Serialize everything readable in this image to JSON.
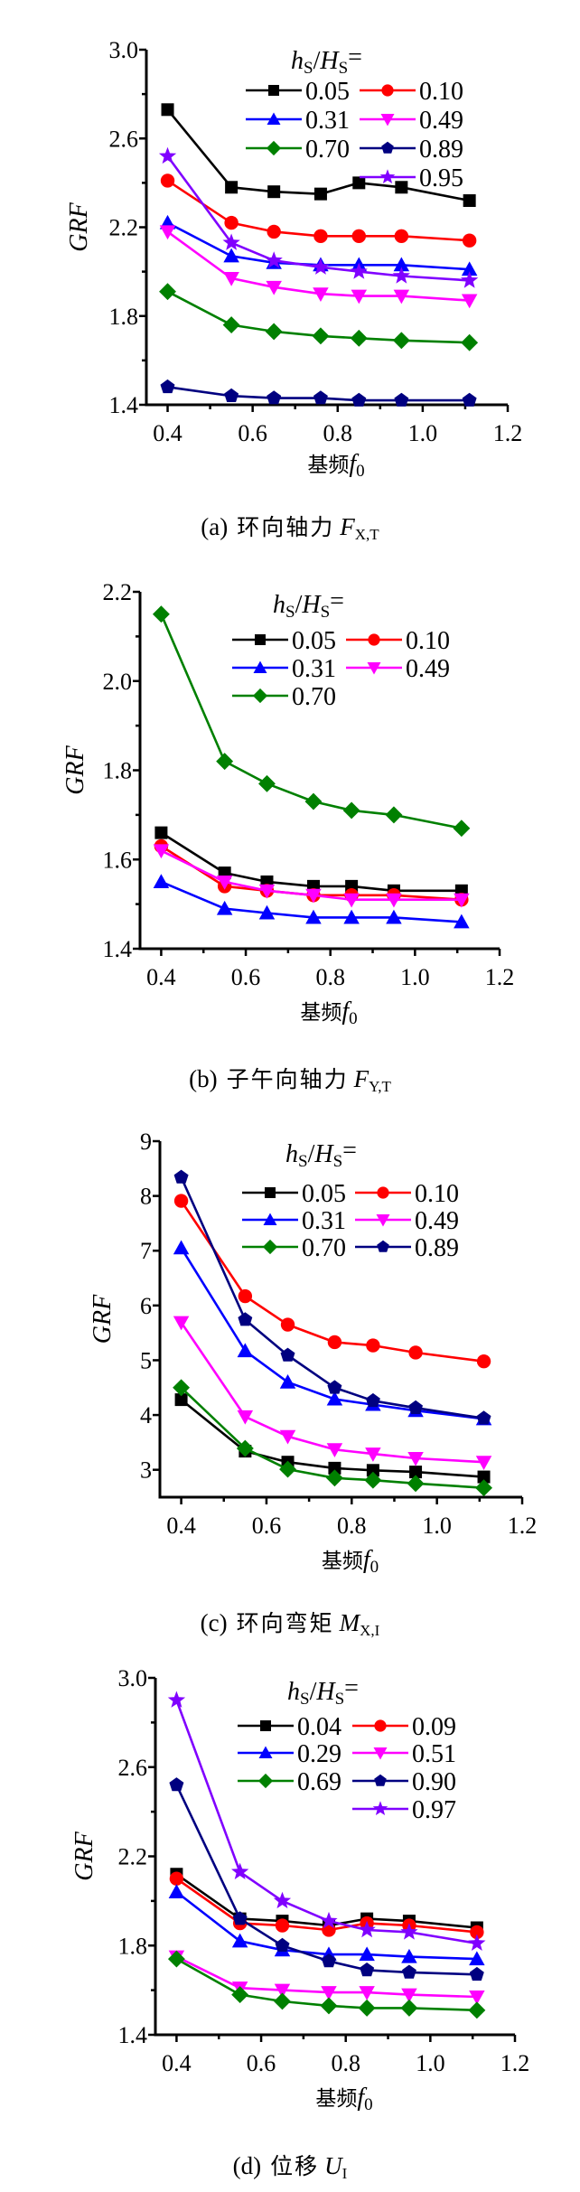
{
  "chart_data": [
    {
      "id": "a",
      "type": "line",
      "caption": {
        "label": "(a)",
        "text": "环向轴力",
        "symbol": "F",
        "subscript": "X,T"
      },
      "xlabel": {
        "text": "基频",
        "symbol": "f",
        "subscript": "0"
      },
      "ylabel": "GRF",
      "legend_title": {
        "h": "h",
        "h_sub": "S",
        "slash": "/",
        "H": "H",
        "H_sub": "S",
        "eq": "="
      },
      "legend_placement": "top-right",
      "xlim": [
        0.35,
        1.2
      ],
      "ylim": [
        1.4,
        3.0
      ],
      "xticks": [
        0.4,
        0.6,
        0.8,
        1.0,
        1.2
      ],
      "xtick_labels": [
        "0.4",
        "0.6",
        "0.8",
        "1.0",
        "1.2"
      ],
      "yticks": [
        1.4,
        1.8,
        2.2,
        2.6,
        3.0
      ],
      "ytick_labels": [
        "1.4",
        "1.8",
        "2.2",
        "2.6",
        "3.0"
      ],
      "yminor": [
        1.6,
        2.0,
        2.4,
        2.8
      ],
      "grid": false,
      "x": [
        0.4,
        0.55,
        0.65,
        0.76,
        0.85,
        0.95,
        1.11
      ],
      "series": [
        {
          "name": "0.05",
          "color": "#000000",
          "marker": "square",
          "values": [
            2.73,
            2.38,
            2.36,
            2.35,
            2.4,
            2.38,
            2.32
          ]
        },
        {
          "name": "0.10",
          "color": "#ff0000",
          "marker": "circle",
          "values": [
            2.41,
            2.22,
            2.18,
            2.16,
            2.16,
            2.16,
            2.14
          ]
        },
        {
          "name": "0.31",
          "color": "#0000ff",
          "marker": "triangle-up",
          "values": [
            2.22,
            2.07,
            2.04,
            2.03,
            2.03,
            2.03,
            2.01
          ]
        },
        {
          "name": "0.49",
          "color": "#ff00ff",
          "marker": "triangle-down",
          "values": [
            2.18,
            1.97,
            1.93,
            1.9,
            1.89,
            1.89,
            1.87
          ]
        },
        {
          "name": "0.70",
          "color": "#008000",
          "marker": "diamond",
          "values": [
            1.91,
            1.76,
            1.73,
            1.71,
            1.7,
            1.69,
            1.68
          ]
        },
        {
          "name": "0.89",
          "color": "#000080",
          "marker": "pentagon",
          "values": [
            1.48,
            1.44,
            1.43,
            1.43,
            1.42,
            1.42,
            1.42
          ]
        },
        {
          "name": "0.95",
          "color": "#8000ff",
          "marker": "star",
          "values": [
            2.52,
            2.13,
            2.05,
            2.02,
            2.0,
            1.98,
            1.96
          ]
        }
      ]
    },
    {
      "id": "b",
      "type": "line",
      "caption": {
        "label": "(b)",
        "text": "子午向轴力",
        "symbol": "F",
        "subscript": "Y,T"
      },
      "xlabel": {
        "text": "基频",
        "symbol": "f",
        "subscript": "0"
      },
      "ylabel": "GRF",
      "legend_title": {
        "h": "h",
        "h_sub": "S",
        "slash": "/",
        "H": "H",
        "H_sub": "S",
        "eq": "="
      },
      "legend_placement": "top-right",
      "xlim": [
        0.35,
        1.2
      ],
      "ylim": [
        1.4,
        2.2
      ],
      "xticks": [
        0.4,
        0.6,
        0.8,
        1.0,
        1.2
      ],
      "xtick_labels": [
        "0.4",
        "0.6",
        "0.8",
        "1.0",
        "1.2"
      ],
      "yticks": [
        1.4,
        1.6,
        1.8,
        2.0,
        2.2
      ],
      "ytick_labels": [
        "1.4",
        "1.6",
        "1.8",
        "2.0",
        "2.2"
      ],
      "yminor": [
        1.5,
        1.7,
        1.9,
        2.1
      ],
      "grid": false,
      "x": [
        0.4,
        0.55,
        0.65,
        0.76,
        0.85,
        0.95,
        1.11
      ],
      "series": [
        {
          "name": "0.05",
          "color": "#000000",
          "marker": "square",
          "values": [
            1.66,
            1.57,
            1.55,
            1.54,
            1.54,
            1.53,
            1.53
          ]
        },
        {
          "name": "0.10",
          "color": "#ff0000",
          "marker": "circle",
          "values": [
            1.63,
            1.54,
            1.53,
            1.52,
            1.52,
            1.52,
            1.51
          ]
        },
        {
          "name": "0.31",
          "color": "#0000ff",
          "marker": "triangle-up",
          "values": [
            1.55,
            1.49,
            1.48,
            1.47,
            1.47,
            1.47,
            1.46
          ]
        },
        {
          "name": "0.49",
          "color": "#ff00ff",
          "marker": "triangle-down",
          "values": [
            1.62,
            1.55,
            1.53,
            1.52,
            1.51,
            1.51,
            1.51
          ]
        },
        {
          "name": "0.70",
          "color": "#008000",
          "marker": "diamond",
          "values": [
            2.15,
            1.82,
            1.77,
            1.73,
            1.71,
            1.7,
            1.67
          ]
        }
      ]
    },
    {
      "id": "c",
      "type": "line",
      "caption": {
        "label": "(c)",
        "text": "环向弯矩",
        "symbol": "M",
        "subscript": "X,I"
      },
      "xlabel": {
        "text": "基频",
        "symbol": "f",
        "subscript": "0"
      },
      "ylabel": "GRF",
      "legend_title": {
        "h": "h",
        "h_sub": "S",
        "slash": "/",
        "H": "H",
        "H_sub": "S",
        "eq": "="
      },
      "legend_placement": "top-right",
      "xlim": [
        0.35,
        1.2
      ],
      "ylim": [
        2.5,
        9
      ],
      "xticks": [
        0.4,
        0.6,
        0.8,
        1.0,
        1.2
      ],
      "xtick_labels": [
        "0.4",
        "0.6",
        "0.8",
        "1.0",
        "1.2"
      ],
      "yticks": [
        3,
        4,
        5,
        6,
        7,
        8,
        9
      ],
      "ytick_labels": [
        "3",
        "4",
        "5",
        "6",
        "7",
        "8",
        "9"
      ],
      "yminor": [],
      "grid": false,
      "x": [
        0.4,
        0.55,
        0.65,
        0.76,
        0.85,
        0.95,
        1.11
      ],
      "series": [
        {
          "name": "0.05",
          "color": "#000000",
          "marker": "square",
          "values": [
            4.28,
            3.34,
            3.14,
            3.03,
            2.99,
            2.96,
            2.87
          ]
        },
        {
          "name": "0.10",
          "color": "#ff0000",
          "marker": "circle",
          "values": [
            7.91,
            6.17,
            5.65,
            5.33,
            5.27,
            5.14,
            4.98
          ]
        },
        {
          "name": "0.31",
          "color": "#0000ff",
          "marker": "triangle-up",
          "values": [
            7.05,
            5.17,
            4.6,
            4.29,
            4.19,
            4.08,
            3.93
          ]
        },
        {
          "name": "0.49",
          "color": "#ff00ff",
          "marker": "triangle-down",
          "values": [
            5.69,
            3.97,
            3.61,
            3.37,
            3.29,
            3.21,
            3.14
          ]
        },
        {
          "name": "0.70",
          "color": "#008000",
          "marker": "diamond",
          "values": [
            4.5,
            3.39,
            3.01,
            2.85,
            2.81,
            2.75,
            2.67
          ]
        },
        {
          "name": "0.89",
          "color": "#000080",
          "marker": "pentagon",
          "values": [
            8.34,
            5.74,
            5.09,
            4.5,
            4.26,
            4.13,
            3.94
          ]
        }
      ]
    },
    {
      "id": "d",
      "type": "line",
      "caption": {
        "label": "(d)",
        "text": "位移",
        "symbol": "U",
        "subscript": "I"
      },
      "xlabel": {
        "text": "基频",
        "symbol": "f",
        "subscript": "0"
      },
      "ylabel": "GRF",
      "legend_title": {
        "h": "h",
        "h_sub": "S",
        "slash": "/",
        "H": "H",
        "H_sub": "S",
        "eq": "="
      },
      "legend_placement": "top-right",
      "xlim": [
        0.35,
        1.2
      ],
      "ylim": [
        1.4,
        3.0
      ],
      "xticks": [
        0.4,
        0.6,
        0.8,
        1.0,
        1.2
      ],
      "xtick_labels": [
        "0.4",
        "0.6",
        "0.8",
        "1.0",
        "1.2"
      ],
      "yticks": [
        1.4,
        1.8,
        2.2,
        2.6,
        3.0
      ],
      "ytick_labels": [
        "1.4",
        "1.8",
        "2.2",
        "2.6",
        "3.0"
      ],
      "yminor": [
        1.6,
        2.0,
        2.4,
        2.8
      ],
      "grid": false,
      "x": [
        0.4,
        0.55,
        0.65,
        0.76,
        0.85,
        0.95,
        1.11
      ],
      "series": [
        {
          "name": "0.04",
          "color": "#000000",
          "marker": "square",
          "values": [
            2.12,
            1.92,
            1.91,
            1.89,
            1.92,
            1.91,
            1.88
          ]
        },
        {
          "name": "0.09",
          "color": "#ff0000",
          "marker": "circle",
          "values": [
            2.1,
            1.9,
            1.89,
            1.87,
            1.9,
            1.89,
            1.86
          ]
        },
        {
          "name": "0.29",
          "color": "#0000ff",
          "marker": "triangle-up",
          "values": [
            2.04,
            1.82,
            1.78,
            1.76,
            1.76,
            1.75,
            1.74
          ]
        },
        {
          "name": "0.51",
          "color": "#ff00ff",
          "marker": "triangle-down",
          "values": [
            1.75,
            1.61,
            1.6,
            1.59,
            1.59,
            1.58,
            1.57
          ]
        },
        {
          "name": "0.69",
          "color": "#008000",
          "marker": "diamond",
          "values": [
            1.74,
            1.58,
            1.55,
            1.53,
            1.52,
            1.52,
            1.51
          ]
        },
        {
          "name": "0.90",
          "color": "#000080",
          "marker": "pentagon",
          "values": [
            2.52,
            1.92,
            1.8,
            1.73,
            1.69,
            1.68,
            1.67
          ]
        },
        {
          "name": "0.97",
          "color": "#8000ff",
          "marker": "star",
          "values": [
            2.9,
            2.13,
            2.0,
            1.91,
            1.87,
            1.86,
            1.81
          ]
        }
      ]
    }
  ]
}
